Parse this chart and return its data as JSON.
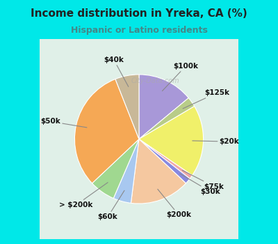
{
  "title": "Income distribution in Yreka, CA (%)",
  "subtitle": "Hispanic or Latino residents",
  "labels": [
    "$100k",
    "$125k",
    "$20k",
    "$75k",
    "$30k",
    "$200k",
    "$60k",
    "> $200k",
    "$50k",
    "$40k"
  ],
  "sizes": [
    14.0,
    2.5,
    18.0,
    1.0,
    1.5,
    15.0,
    4.5,
    6.5,
    31.0,
    6.0
  ],
  "colors": [
    "#a898d8",
    "#b8cc88",
    "#f0f06a",
    "#f0a8a8",
    "#8888e0",
    "#f5c8a0",
    "#a8c8f0",
    "#a0d890",
    "#f5a855",
    "#c8b898"
  ],
  "background_color": "#00e8e8",
  "chart_bg_left": "#d8f0e0",
  "chart_bg_right": "#e8f8f0",
  "title_color": "#222222",
  "subtitle_color": "#448888",
  "startangle": 90,
  "label_pct_distance": 1.22,
  "wedge_edge_color": "white",
  "wedge_linewidth": 0.8
}
